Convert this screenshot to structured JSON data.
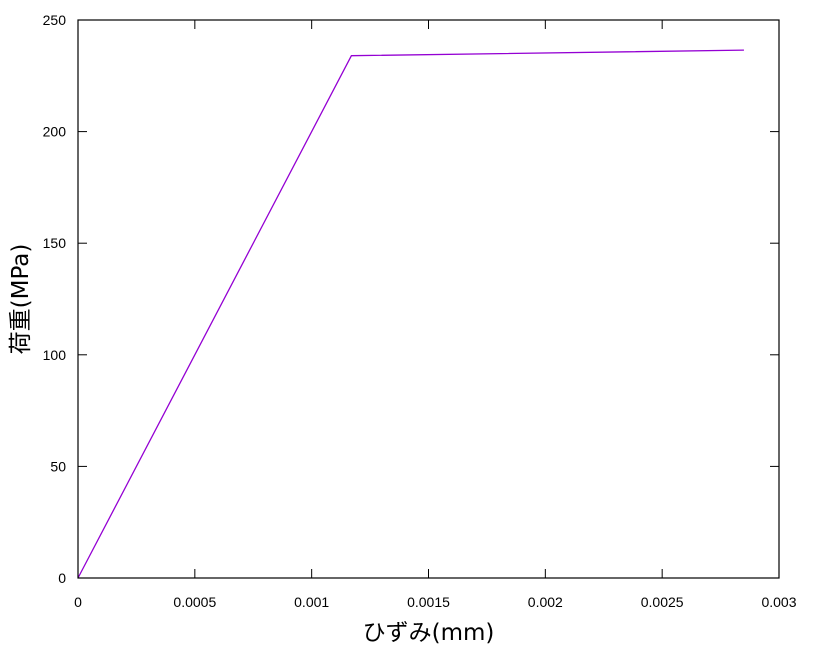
{
  "chart_data": {
    "type": "line",
    "title": "",
    "xlabel": "ひずみ(mm)",
    "ylabel": "荷重(MPa)",
    "xlim": [
      0,
      0.003
    ],
    "ylim": [
      0,
      250
    ],
    "x_ticks": [
      0,
      0.0005,
      0.001,
      0.0015,
      0.002,
      0.0025,
      0.003
    ],
    "x_tick_labels": [
      "0",
      "0.0005",
      "0.001",
      "0.0015",
      "0.002",
      "0.0025",
      "0.003"
    ],
    "y_ticks": [
      0,
      50,
      100,
      150,
      200,
      250
    ],
    "y_tick_labels": [
      "0",
      "50",
      "100",
      "150",
      "200",
      "250"
    ],
    "grid": false,
    "legend": "none",
    "series": [
      {
        "color": "#9400d3",
        "x": [
          0,
          0.00117,
          0.00285
        ],
        "y": [
          0,
          234,
          236.5
        ]
      }
    ]
  }
}
